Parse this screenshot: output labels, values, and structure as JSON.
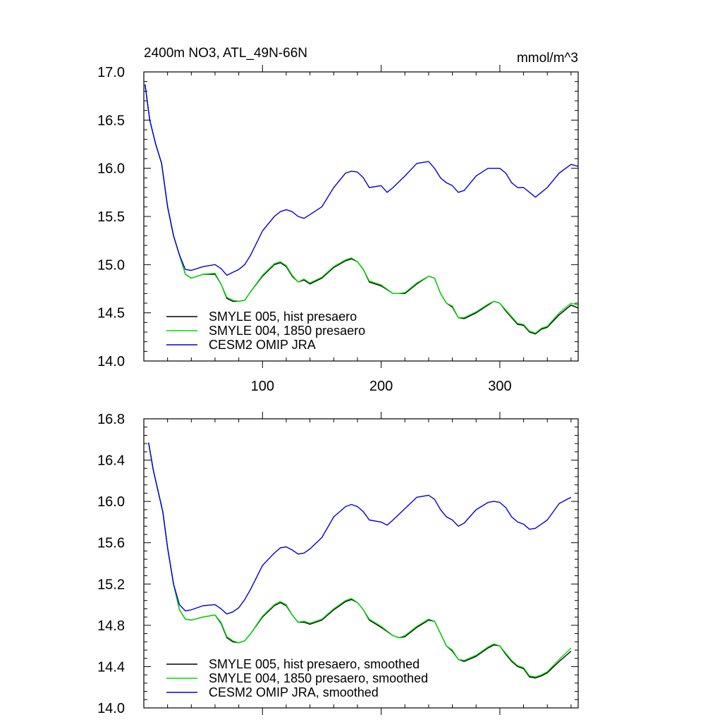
{
  "figure": {
    "title_left": "2400m NO3, ATL_49N-66N",
    "title_right": "mmol/m^3"
  },
  "chart_data": [
    {
      "type": "line",
      "title": "2400m NO3, ATL_49N-66N",
      "units": "mmol/m^3",
      "xlim": [
        0,
        366
      ],
      "ylim": [
        14.0,
        17.0
      ],
      "x_ticks": [
        100,
        200,
        300
      ],
      "x_tick_labels": [
        "100",
        "200",
        "300"
      ],
      "y_ticks": [
        14.0,
        14.5,
        15.0,
        15.5,
        16.0,
        16.5,
        17.0
      ],
      "y_tick_labels": [
        "14.0",
        "14.5",
        "15.0",
        "15.5",
        "16.0",
        "16.5",
        "17.0"
      ],
      "legend": "bottom-left",
      "series": [
        {
          "name": "SMYLE 005, hist presaero",
          "color": "#000000",
          "x": [
            1,
            5,
            10,
            15,
            20,
            25,
            30,
            35,
            40,
            50,
            60,
            65,
            70,
            75,
            80,
            85,
            90,
            100,
            110,
            115,
            120,
            125,
            130,
            135,
            140,
            150,
            160,
            170,
            175,
            180,
            185,
            190,
            200,
            210,
            215,
            220,
            230,
            240,
            245,
            250,
            255,
            260,
            265,
            270,
            280,
            290,
            295,
            300,
            305,
            310,
            315,
            320,
            325,
            330,
            335,
            340,
            350,
            360,
            366
          ],
          "y": [
            16.87,
            16.5,
            16.25,
            16.05,
            15.6,
            15.3,
            15.1,
            14.9,
            14.86,
            14.9,
            14.9,
            14.8,
            14.65,
            14.62,
            14.62,
            14.63,
            14.72,
            14.88,
            15.0,
            15.02,
            14.98,
            14.88,
            14.82,
            14.84,
            14.8,
            14.86,
            14.97,
            15.04,
            15.06,
            15.03,
            14.95,
            14.82,
            14.78,
            14.7,
            14.7,
            14.7,
            14.8,
            14.88,
            14.86,
            14.7,
            14.6,
            14.56,
            14.45,
            14.44,
            14.5,
            14.58,
            14.62,
            14.6,
            14.52,
            14.45,
            14.38,
            14.37,
            14.3,
            14.28,
            14.33,
            14.35,
            14.48,
            14.58,
            14.55
          ]
        },
        {
          "name": "SMYLE 004, 1850 presaero",
          "color": "#00dd00",
          "x": [
            1,
            5,
            10,
            15,
            20,
            25,
            30,
            35,
            40,
            50,
            60,
            65,
            70,
            75,
            80,
            85,
            90,
            100,
            110,
            115,
            120,
            125,
            130,
            135,
            140,
            150,
            160,
            170,
            175,
            180,
            185,
            190,
            200,
            210,
            215,
            220,
            230,
            240,
            245,
            250,
            255,
            260,
            265,
            270,
            280,
            290,
            295,
            300,
            305,
            310,
            315,
            320,
            325,
            330,
            335,
            340,
            350,
            360,
            366
          ],
          "y": [
            16.87,
            16.5,
            16.25,
            16.05,
            15.6,
            15.3,
            15.1,
            14.9,
            14.86,
            14.9,
            14.91,
            14.8,
            14.66,
            14.63,
            14.62,
            14.63,
            14.72,
            14.89,
            15.01,
            15.03,
            14.99,
            14.89,
            14.82,
            14.85,
            14.81,
            14.87,
            14.98,
            15.05,
            15.07,
            15.03,
            14.95,
            14.83,
            14.79,
            14.7,
            14.7,
            14.71,
            14.81,
            14.88,
            14.86,
            14.7,
            14.6,
            14.57,
            14.45,
            14.45,
            14.51,
            14.59,
            14.62,
            14.6,
            14.53,
            14.46,
            14.39,
            14.38,
            14.31,
            14.29,
            14.34,
            14.36,
            14.5,
            14.6,
            14.58
          ]
        },
        {
          "name": "CESM2 OMIP JRA",
          "color": "#0000dd",
          "x": [
            1,
            5,
            10,
            15,
            20,
            25,
            30,
            35,
            40,
            50,
            60,
            65,
            70,
            75,
            80,
            85,
            90,
            100,
            110,
            115,
            120,
            125,
            130,
            135,
            140,
            150,
            160,
            170,
            175,
            180,
            185,
            190,
            200,
            205,
            210,
            220,
            230,
            240,
            245,
            250,
            255,
            260,
            265,
            270,
            280,
            290,
            295,
            300,
            305,
            310,
            315,
            320,
            325,
            330,
            335,
            340,
            350,
            360,
            366
          ],
          "y": [
            16.87,
            16.5,
            16.25,
            16.05,
            15.6,
            15.3,
            15.1,
            14.95,
            14.94,
            14.98,
            15.0,
            14.96,
            14.89,
            14.92,
            14.95,
            15.0,
            15.1,
            15.35,
            15.5,
            15.55,
            15.57,
            15.55,
            15.5,
            15.48,
            15.52,
            15.6,
            15.8,
            15.95,
            15.97,
            15.96,
            15.9,
            15.8,
            15.82,
            15.75,
            15.8,
            15.92,
            16.05,
            16.07,
            16.0,
            15.9,
            15.85,
            15.82,
            15.75,
            15.77,
            15.92,
            16.0,
            16.0,
            16.0,
            15.95,
            15.85,
            15.8,
            15.8,
            15.75,
            15.7,
            15.75,
            15.8,
            15.95,
            16.04,
            16.02
          ]
        }
      ]
    },
    {
      "type": "line",
      "xlim": [
        0,
        366
      ],
      "ylim": [
        14.0,
        16.8
      ],
      "x_ticks": [
        100,
        200,
        300
      ],
      "y_ticks": [
        14.0,
        14.4,
        14.8,
        15.2,
        15.6,
        16.0,
        16.4,
        16.8
      ],
      "y_tick_labels": [
        "14.0",
        "14.4",
        "14.8",
        "15.2",
        "15.6",
        "16.0",
        "16.4",
        "16.8"
      ],
      "legend": "bottom-left",
      "series": [
        {
          "name": "SMYLE 005, hist presaero, smoothed",
          "color": "#000000",
          "x": [
            4,
            8,
            12,
            16,
            20,
            25,
            30,
            35,
            40,
            50,
            60,
            65,
            70,
            75,
            80,
            85,
            90,
            100,
            110,
            115,
            120,
            125,
            130,
            135,
            140,
            150,
            160,
            170,
            175,
            180,
            185,
            190,
            200,
            210,
            215,
            220,
            230,
            240,
            245,
            250,
            255,
            260,
            265,
            270,
            280,
            290,
            295,
            300,
            305,
            310,
            315,
            320,
            325,
            330,
            335,
            340,
            350,
            360
          ],
          "y": [
            16.57,
            16.3,
            16.1,
            15.9,
            15.55,
            15.2,
            14.95,
            14.86,
            14.85,
            14.88,
            14.9,
            14.82,
            14.68,
            14.64,
            14.63,
            14.65,
            14.72,
            14.88,
            14.99,
            15.02,
            14.99,
            14.9,
            14.83,
            14.83,
            14.81,
            14.85,
            14.95,
            15.03,
            15.05,
            15.02,
            14.95,
            14.85,
            14.78,
            14.7,
            14.68,
            14.69,
            14.78,
            14.85,
            14.84,
            14.72,
            14.6,
            14.55,
            14.47,
            14.45,
            14.5,
            14.58,
            14.61,
            14.6,
            14.52,
            14.45,
            14.4,
            14.38,
            14.3,
            14.29,
            14.31,
            14.34,
            14.45,
            14.55
          ]
        },
        {
          "name": "SMYLE 004, 1850 presaero, smoothed",
          "color": "#00dd00",
          "x": [
            4,
            8,
            12,
            16,
            20,
            25,
            30,
            35,
            40,
            50,
            60,
            65,
            70,
            75,
            80,
            85,
            90,
            100,
            110,
            115,
            120,
            125,
            130,
            135,
            140,
            150,
            160,
            170,
            175,
            180,
            185,
            190,
            200,
            210,
            215,
            220,
            230,
            240,
            245,
            250,
            255,
            260,
            265,
            270,
            280,
            290,
            295,
            300,
            305,
            310,
            315,
            320,
            325,
            330,
            335,
            340,
            350,
            360
          ],
          "y": [
            16.57,
            16.3,
            16.1,
            15.9,
            15.55,
            15.2,
            14.95,
            14.86,
            14.85,
            14.88,
            14.9,
            14.83,
            14.69,
            14.65,
            14.63,
            14.65,
            14.72,
            14.89,
            15.0,
            15.03,
            15.0,
            14.9,
            14.83,
            14.84,
            14.82,
            14.86,
            14.96,
            15.04,
            15.06,
            15.02,
            14.95,
            14.86,
            14.79,
            14.7,
            14.68,
            14.7,
            14.79,
            14.86,
            14.84,
            14.72,
            14.6,
            14.56,
            14.47,
            14.46,
            14.51,
            14.59,
            14.62,
            14.6,
            14.53,
            14.46,
            14.41,
            14.39,
            14.31,
            14.3,
            14.32,
            14.35,
            14.47,
            14.58
          ]
        },
        {
          "name": "CESM2 OMIP JRA, smoothed",
          "color": "#0000dd",
          "x": [
            4,
            8,
            12,
            16,
            20,
            25,
            30,
            35,
            40,
            50,
            60,
            65,
            70,
            75,
            80,
            85,
            90,
            100,
            110,
            115,
            120,
            125,
            130,
            135,
            140,
            150,
            160,
            170,
            175,
            180,
            185,
            190,
            200,
            205,
            210,
            220,
            230,
            240,
            245,
            250,
            255,
            260,
            265,
            270,
            280,
            290,
            295,
            300,
            305,
            310,
            315,
            320,
            325,
            330,
            335,
            340,
            350,
            360
          ],
          "y": [
            16.57,
            16.3,
            16.1,
            15.9,
            15.55,
            15.2,
            15.0,
            14.94,
            14.95,
            14.99,
            15.0,
            14.96,
            14.91,
            14.93,
            14.97,
            15.05,
            15.15,
            15.38,
            15.5,
            15.55,
            15.56,
            15.53,
            15.49,
            15.5,
            15.54,
            15.65,
            15.85,
            15.95,
            15.97,
            15.95,
            15.9,
            15.82,
            15.8,
            15.77,
            15.82,
            15.93,
            16.04,
            16.06,
            16.02,
            15.92,
            15.85,
            15.82,
            15.76,
            15.79,
            15.92,
            15.99,
            16.0,
            15.99,
            15.94,
            15.85,
            15.8,
            15.78,
            15.73,
            15.74,
            15.78,
            15.82,
            15.98,
            16.04
          ]
        }
      ]
    }
  ]
}
